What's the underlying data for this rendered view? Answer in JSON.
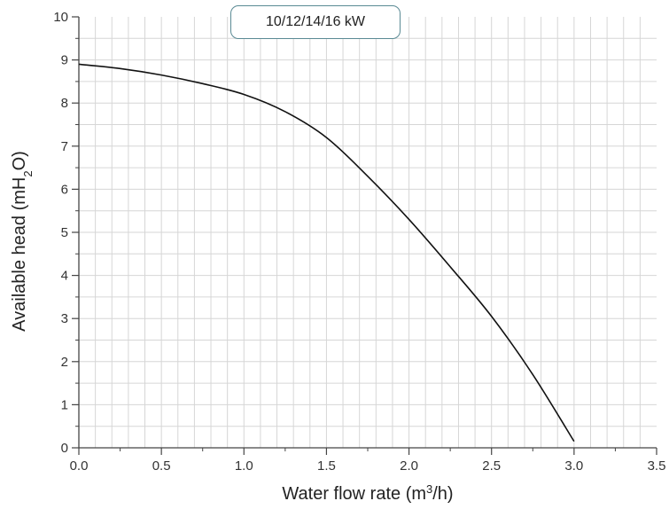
{
  "chart_data": {
    "type": "line",
    "series": [
      {
        "name": "10/12/14/16 kW",
        "x": [
          0.0,
          0.25,
          0.5,
          0.75,
          1.0,
          1.25,
          1.5,
          1.75,
          2.0,
          2.25,
          2.5,
          2.75,
          3.0
        ],
        "y": [
          8.9,
          8.8,
          8.65,
          8.45,
          8.2,
          7.8,
          7.2,
          6.3,
          5.3,
          4.2,
          3.05,
          1.7,
          0.15
        ]
      }
    ],
    "legend_text": "10/12/14/16 kW",
    "xlabel_parts": {
      "pre": "Water flow rate (m",
      "sup": "3",
      "post": "/h)"
    },
    "ylabel_parts": {
      "pre": "Available head (mH",
      "sub": "2",
      "post": "O)"
    },
    "xlim": [
      0,
      3.5
    ],
    "ylim": [
      0,
      10
    ],
    "x_ticks": [
      "0.0",
      "0.5",
      "1.0",
      "1.5",
      "2.0",
      "2.5",
      "3.0",
      "3.5"
    ],
    "y_ticks": [
      "0",
      "1",
      "2",
      "3",
      "4",
      "5",
      "6",
      "7",
      "8",
      "9",
      "10"
    ],
    "grid": true,
    "legend_position": "top-center"
  }
}
